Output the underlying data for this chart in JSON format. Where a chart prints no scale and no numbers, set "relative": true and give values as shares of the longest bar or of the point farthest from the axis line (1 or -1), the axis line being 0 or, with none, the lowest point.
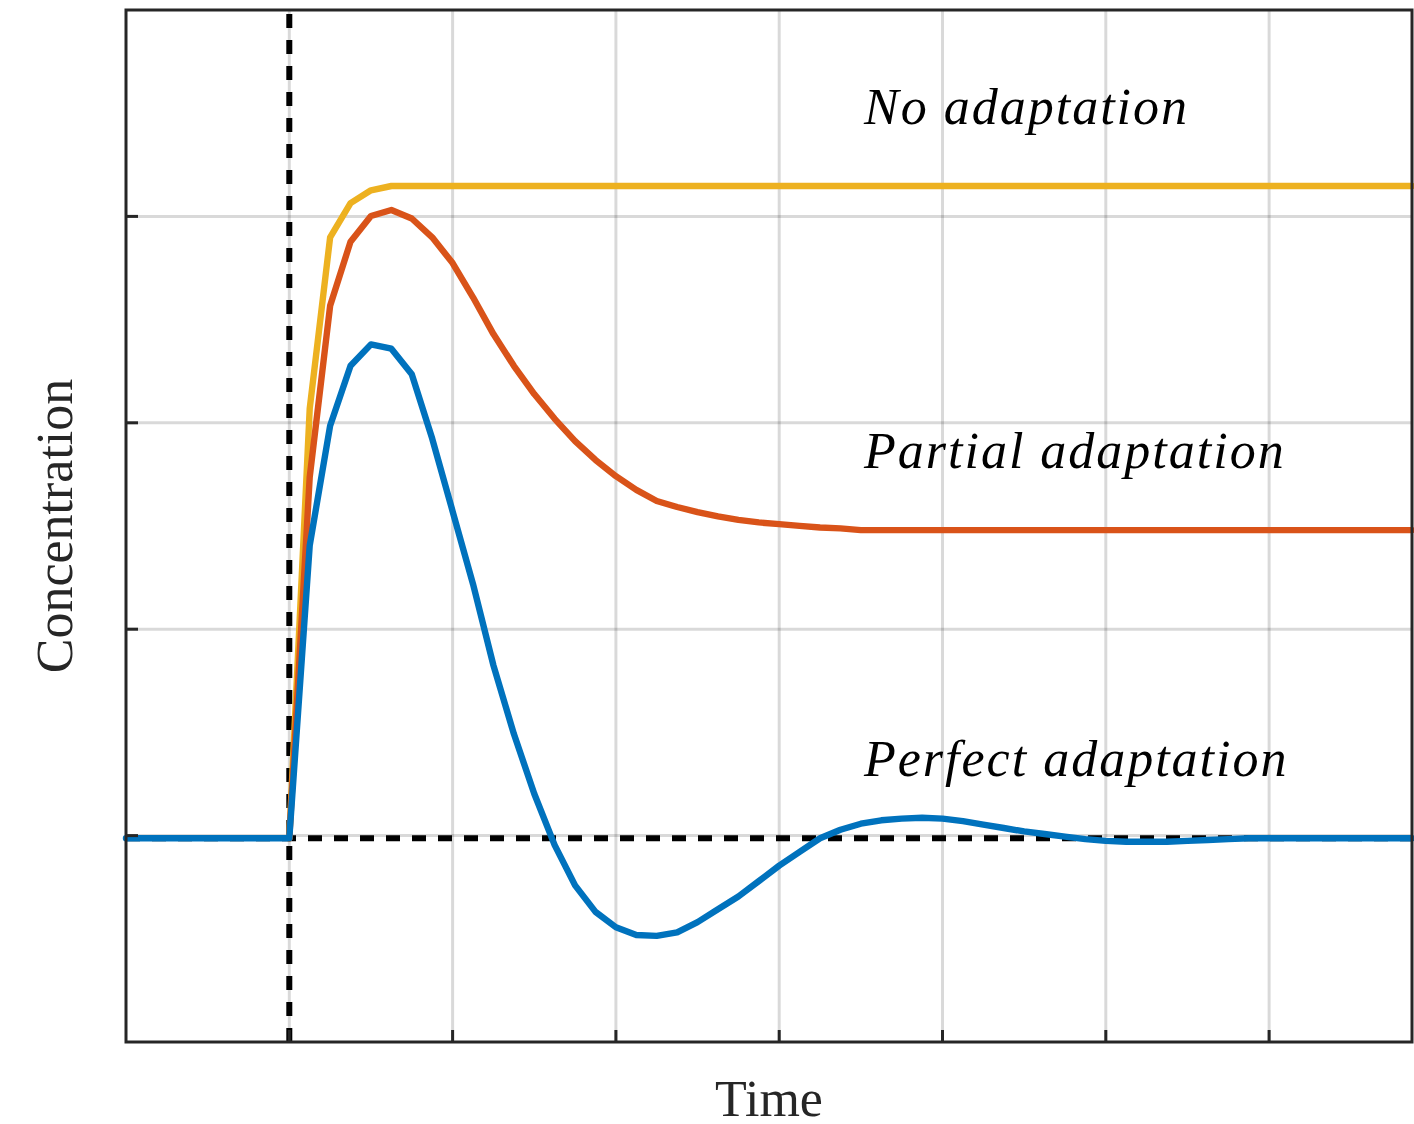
{
  "chart_data": {
    "type": "line",
    "relative": true,
    "xlabel": "Time",
    "ylabel": "Concentration",
    "categories": [
      null,
      null,
      null,
      null,
      null,
      null,
      null,
      null,
      null,
      null,
      null,
      null,
      null,
      null,
      null,
      null,
      null,
      null,
      null,
      null,
      null,
      null,
      null,
      null,
      null,
      null,
      null,
      null,
      null,
      null,
      null,
      null,
      null,
      null,
      null,
      null,
      null,
      null,
      null,
      null,
      null,
      null,
      null,
      null,
      null,
      null,
      null,
      null,
      null,
      null,
      null,
      null,
      null,
      null,
      null,
      null,
      null,
      null,
      null,
      null,
      null,
      null,
      null,
      null
    ],
    "grid": true,
    "legend": false,
    "marker": "none",
    "line_style": "solid",
    "ref_lines": [
      {
        "axis": "y",
        "value": 0.238,
        "line_style": "dashed",
        "color": "#000000"
      }
    ],
    "series": [
      {
        "name": "No adaptation",
        "color": "#edb120",
        "values": [
          null,
          null,
          null,
          null,
          null,
          null,
          null,
          null,
          0.238,
          0.74,
          0.94,
          0.98,
          0.995,
          1,
          1,
          1,
          1,
          1,
          1,
          1,
          1,
          1,
          1,
          1,
          1,
          1,
          1,
          1,
          1,
          1,
          1,
          1,
          1,
          1,
          1,
          1,
          1,
          1,
          1,
          1,
          1,
          1,
          1,
          1,
          1,
          1,
          1,
          1,
          1,
          1,
          1,
          1,
          1,
          1,
          1,
          1,
          1,
          1,
          1,
          1,
          1,
          1,
          1,
          1
        ]
      },
      {
        "name": "Partial adaptation",
        "color": "#d95319",
        "values": [
          null,
          null,
          null,
          null,
          null,
          null,
          null,
          null,
          0.238,
          0.66,
          0.86,
          0.935,
          0.965,
          0.972,
          0.962,
          0.94,
          0.91,
          0.87,
          0.827,
          0.79,
          0.757,
          0.728,
          0.702,
          0.68,
          0.661,
          0.645,
          0.632,
          0.625,
          0.619,
          0.614,
          0.61,
          0.607,
          0.605,
          0.603,
          0.601,
          0.6,
          0.598,
          0.598,
          0.598,
          0.598,
          0.598,
          0.598,
          0.598,
          0.598,
          0.598,
          0.598,
          0.598,
          0.598,
          0.598,
          0.598,
          0.598,
          0.598,
          0.598,
          0.598,
          0.598,
          0.598,
          0.598,
          0.598,
          0.598,
          0.598,
          0.598,
          0.598,
          0.598,
          0.598
        ]
      },
      {
        "name": "Perfect adaptation",
        "color": "#0072bd",
        "values": [
          0.238,
          0.238,
          0.238,
          0.238,
          0.238,
          0.238,
          0.238,
          0.238,
          0.238,
          0.58,
          0.72,
          0.79,
          0.815,
          0.81,
          0.78,
          0.705,
          0.62,
          0.535,
          0.44,
          0.36,
          0.29,
          0.23,
          0.183,
          0.152,
          0.134,
          0.125,
          0.124,
          0.128,
          0.14,
          0.155,
          0.17,
          0.188,
          0.206,
          0.222,
          0.238,
          0.248,
          0.255,
          0.259,
          0.261,
          0.262,
          0.261,
          0.258,
          0.254,
          0.25,
          0.246,
          0.243,
          0.24,
          0.237,
          0.235,
          0.234,
          0.234,
          0.234,
          0.235,
          0.236,
          0.237,
          0.238,
          0.238,
          0.238,
          0.238,
          0.238,
          0.238,
          0.238,
          0.238,
          0.238
        ]
      }
    ]
  }
}
